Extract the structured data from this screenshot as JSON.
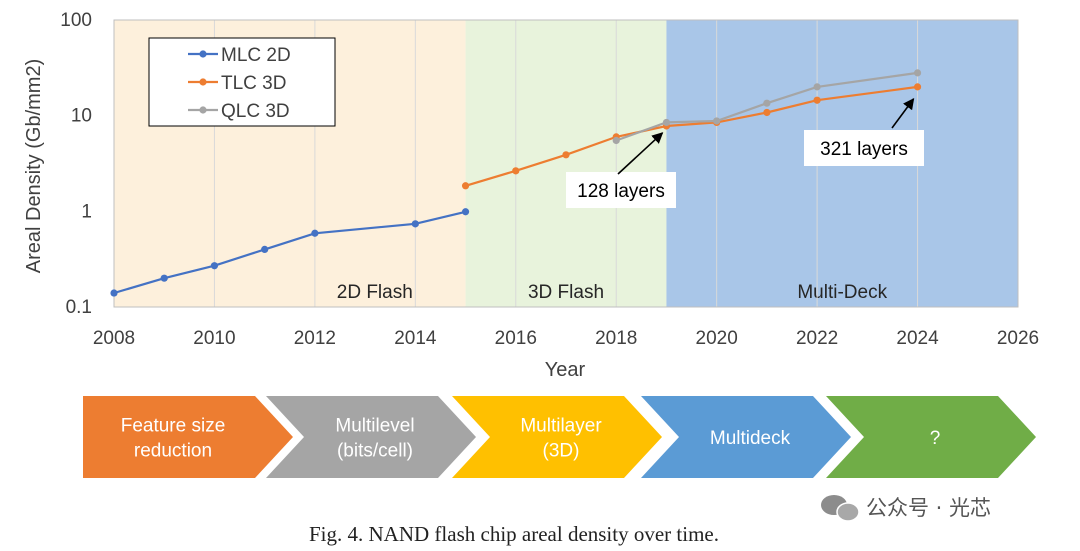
{
  "chart_data": {
    "type": "line",
    "yscale": "log",
    "xlabel": "Year",
    "ylabel": "Areal Density (Gb/mm2)",
    "xlim": [
      2008,
      2026
    ],
    "ylim": [
      0.1,
      100
    ],
    "x_ticks": [
      "2008",
      "2010",
      "2012",
      "2014",
      "2016",
      "2018",
      "2020",
      "2022",
      "2024",
      "2026"
    ],
    "y_ticks": [
      "0.1",
      "1",
      "10",
      "100"
    ],
    "grid": "vertical",
    "legend_position": "top-left",
    "series": [
      {
        "name": "MLC 2D",
        "color": "#4472c4",
        "points": [
          [
            2008,
            0.14
          ],
          [
            2009,
            0.2
          ],
          [
            2010,
            0.27
          ],
          [
            2011,
            0.4
          ],
          [
            2012,
            0.59
          ],
          [
            2014,
            0.74
          ],
          [
            2015,
            0.99
          ]
        ]
      },
      {
        "name": "TLC 3D",
        "color": "#ed7d31",
        "points": [
          [
            2015,
            1.85
          ],
          [
            2016,
            2.65
          ],
          [
            2017,
            3.9
          ],
          [
            2018,
            6.0
          ],
          [
            2019,
            7.8
          ],
          [
            2020,
            8.5
          ],
          [
            2021,
            10.8
          ],
          [
            2022,
            14.5
          ],
          [
            2024,
            20
          ]
        ]
      },
      {
        "name": "QLC 3D",
        "color": "#a5a5a5",
        "points": [
          [
            2018,
            5.5
          ],
          [
            2019,
            8.5
          ],
          [
            2020,
            8.8
          ],
          [
            2021,
            13.5
          ],
          [
            2022,
            20
          ],
          [
            2024,
            28
          ]
        ]
      }
    ],
    "regions": [
      {
        "label": "2D Flash",
        "from": 2008,
        "to": 2015,
        "color": "#fdf0dc"
      },
      {
        "label": "3D Flash",
        "from": 2015,
        "to": 2019,
        "color": "#e8f3dc"
      },
      {
        "label": "Multi-Deck",
        "from": 2019,
        "to": 2026,
        "color": "#a9c6e8"
      }
    ],
    "annotations": [
      {
        "text": "128 layers",
        "x": 2019,
        "y": 8.0
      },
      {
        "text": "321 layers",
        "x": 2024,
        "y": 20
      }
    ]
  },
  "process_arrows": [
    {
      "lines": [
        "Feature size",
        "reduction"
      ],
      "color": "#ed7d31"
    },
    {
      "lines": [
        "Multilevel",
        "(bits/cell)"
      ],
      "color": "#a5a5a5"
    },
    {
      "lines": [
        "Multilayer",
        "(3D)"
      ],
      "color": "#ffc000"
    },
    {
      "lines": [
        "Multideck"
      ],
      "color": "#5b9bd5"
    },
    {
      "lines": [
        "?"
      ],
      "color": "#70ad47"
    }
  ],
  "caption": "Fig. 4.  NAND flash chip areal density over time.",
  "watermark": "公众号 · 光芯",
  "icons": {
    "watermark": "wechat-icon"
  }
}
